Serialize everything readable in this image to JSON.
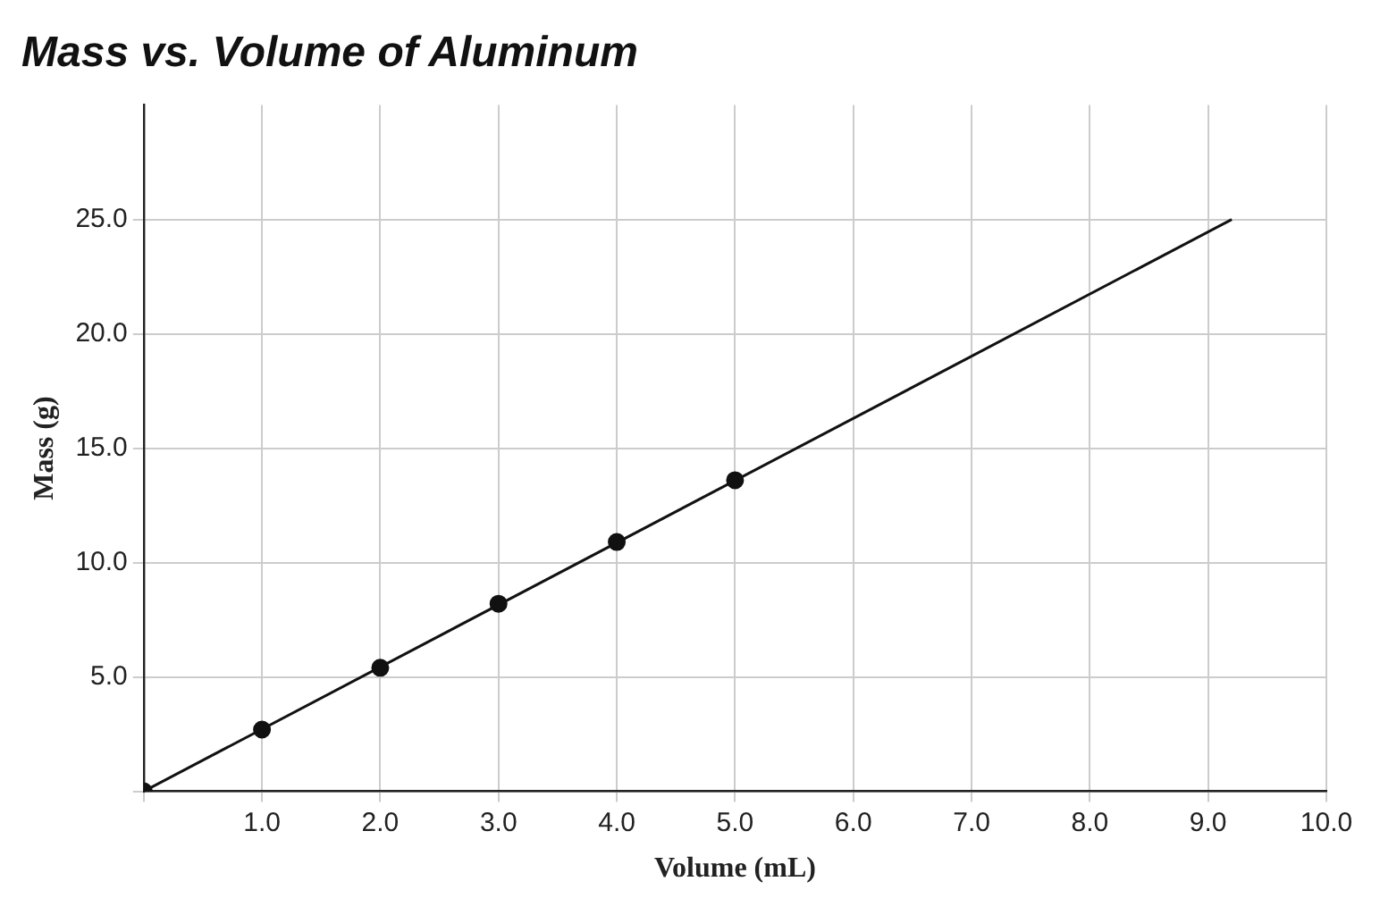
{
  "chart_data": {
    "type": "scatter",
    "title": "Mass vs. Volume of Aluminum",
    "xlabel": "Volume (mL)",
    "ylabel": "Mass (g)",
    "x": [
      0,
      1,
      2,
      3,
      4,
      5
    ],
    "series": [
      {
        "color": "#111111",
        "values": [
          0,
          2.7,
          5.4,
          8.2,
          10.9,
          13.6
        ],
        "marker": "circle"
      },
      {
        "type": "line",
        "color": "#111111",
        "x": [
          0,
          9.2
        ],
        "values": [
          0,
          25
        ],
        "marker": "none",
        "line_style": "solid"
      }
    ],
    "xlim": [
      0,
      10
    ],
    "ylim": [
      0,
      30
    ],
    "xticks": [
      {
        "value": 0,
        "label": null
      },
      {
        "value": 1,
        "label": "1.0"
      },
      {
        "value": 2,
        "label": "2.0"
      },
      {
        "value": 3,
        "label": "3.0"
      },
      {
        "value": 4,
        "label": "4.0"
      },
      {
        "value": 5,
        "label": "5.0"
      },
      {
        "value": 6,
        "label": "6.0"
      },
      {
        "value": 7,
        "label": "7.0"
      },
      {
        "value": 8,
        "label": "8.0"
      },
      {
        "value": 9,
        "label": "9.0"
      },
      {
        "value": 10,
        "label": "10.0"
      }
    ],
    "yticks": [
      {
        "value": 0,
        "label": null
      },
      {
        "value": 5,
        "label": "5.0"
      },
      {
        "value": 10,
        "label": "10.0"
      },
      {
        "value": 15,
        "label": "15.0"
      },
      {
        "value": 20,
        "label": "20.0"
      },
      {
        "value": 25,
        "label": "25.0"
      }
    ],
    "grid": true,
    "legend": false
  }
}
